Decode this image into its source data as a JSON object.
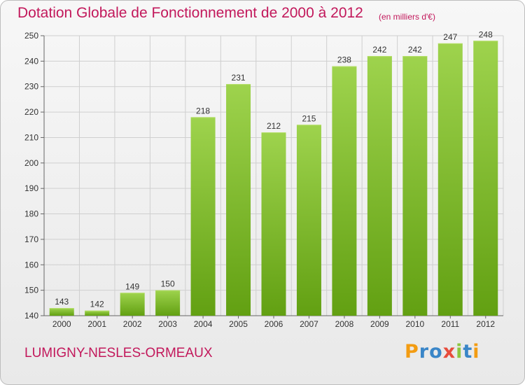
{
  "title": "Dotation Globale de Fonctionnement de 2000 à 2012",
  "unit_note": "(en milliers d'€)",
  "commune": "LUMIGNY-NESLES-ORMEAUX",
  "logo": {
    "text": "Proxiti",
    "letters": [
      "P",
      "r",
      "o",
      "x",
      "i",
      "t",
      "i"
    ],
    "colors": [
      "#f39c12",
      "#3a86c8",
      "#3a86c8",
      "#e74c3c",
      "#8dc63f",
      "#3a86c8",
      "#f39c12"
    ]
  },
  "colors": {
    "accent": "#c2185b",
    "bar_light": "#9ed34d",
    "bar_dark": "#62a012",
    "grid": "#cfcfcf"
  },
  "chart_data": {
    "type": "bar",
    "title": "Dotation Globale de Fonctionnement de 2000 à 2012",
    "xlabel": "",
    "ylabel": "",
    "categories": [
      "2000",
      "2001",
      "2002",
      "2003",
      "2004",
      "2005",
      "2006",
      "2007",
      "2008",
      "2009",
      "2010",
      "2011",
      "2012"
    ],
    "values": [
      143,
      142,
      149,
      150,
      218,
      231,
      212,
      215,
      238,
      242,
      242,
      247,
      248
    ],
    "ylim": [
      140,
      250
    ],
    "yticks": [
      140,
      150,
      160,
      170,
      180,
      190,
      200,
      210,
      220,
      230,
      240,
      250
    ],
    "grid": true,
    "data_labels": true
  }
}
